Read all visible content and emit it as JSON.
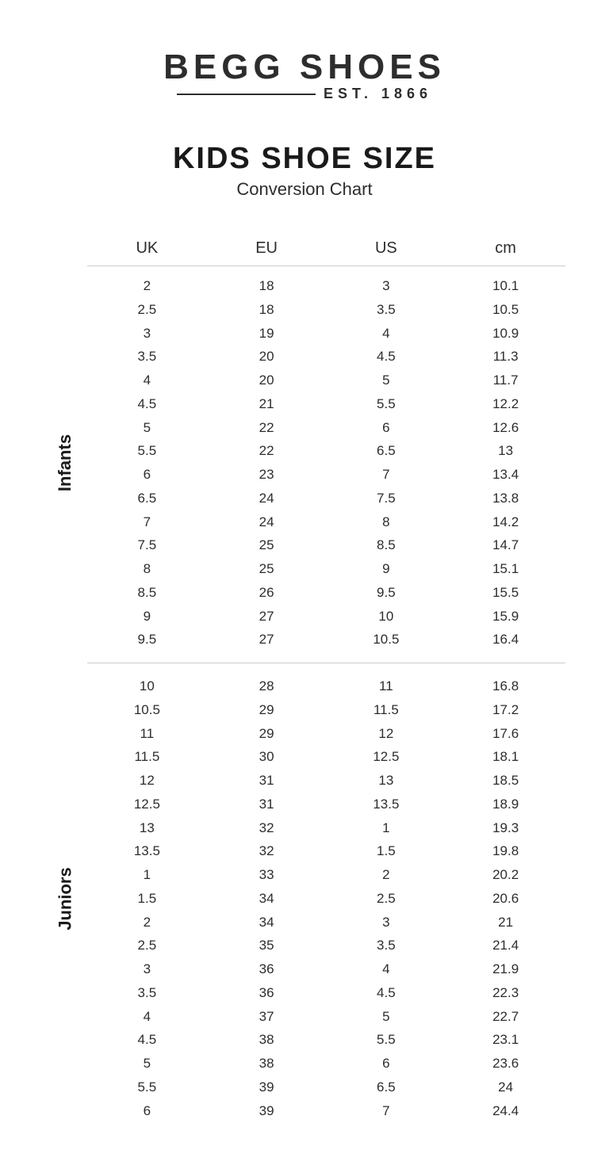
{
  "brand": "BEGG SHOES",
  "established": "EST. 1866",
  "title": "KIDS SHOE SIZE",
  "subtitle": "Conversion Chart",
  "columns": [
    "UK",
    "EU",
    "US",
    "cm"
  ],
  "sections": [
    {
      "label": "Infants",
      "rows": [
        [
          "2",
          "18",
          "3",
          "10.1"
        ],
        [
          "2.5",
          "18",
          "3.5",
          "10.5"
        ],
        [
          "3",
          "19",
          "4",
          "10.9"
        ],
        [
          "3.5",
          "20",
          "4.5",
          "11.3"
        ],
        [
          "4",
          "20",
          "5",
          "11.7"
        ],
        [
          "4.5",
          "21",
          "5.5",
          "12.2"
        ],
        [
          "5",
          "22",
          "6",
          "12.6"
        ],
        [
          "5.5",
          "22",
          "6.5",
          "13"
        ],
        [
          "6",
          "23",
          "7",
          "13.4"
        ],
        [
          "6.5",
          "24",
          "7.5",
          "13.8"
        ],
        [
          "7",
          "24",
          "8",
          "14.2"
        ],
        [
          "7.5",
          "25",
          "8.5",
          "14.7"
        ],
        [
          "8",
          "25",
          "9",
          "15.1"
        ],
        [
          "8.5",
          "26",
          "9.5",
          "15.5"
        ],
        [
          "9",
          "27",
          "10",
          "15.9"
        ],
        [
          "9.5",
          "27",
          "10.5",
          "16.4"
        ]
      ]
    },
    {
      "label": "Juniors",
      "rows": [
        [
          "10",
          "28",
          "11",
          "16.8"
        ],
        [
          "10.5",
          "29",
          "11.5",
          "17.2"
        ],
        [
          "11",
          "29",
          "12",
          "17.6"
        ],
        [
          "11.5",
          "30",
          "12.5",
          "18.1"
        ],
        [
          "12",
          "31",
          "13",
          "18.5"
        ],
        [
          "12.5",
          "31",
          "13.5",
          "18.9"
        ],
        [
          "13",
          "32",
          "1",
          "19.3"
        ],
        [
          "13.5",
          "32",
          "1.5",
          "19.8"
        ],
        [
          "1",
          "33",
          "2",
          "20.2"
        ],
        [
          "1.5",
          "34",
          "2.5",
          "20.6"
        ],
        [
          "2",
          "34",
          "3",
          "21"
        ],
        [
          "2.5",
          "35",
          "3.5",
          "21.4"
        ],
        [
          "3",
          "36",
          "4",
          "21.9"
        ],
        [
          "3.5",
          "36",
          "4.5",
          "22.3"
        ],
        [
          "4",
          "37",
          "5",
          "22.7"
        ],
        [
          "4.5",
          "38",
          "5.5",
          "23.1"
        ],
        [
          "5",
          "38",
          "6",
          "23.6"
        ],
        [
          "5.5",
          "39",
          "6.5",
          "24"
        ],
        [
          "6",
          "39",
          "7",
          "24.4"
        ]
      ]
    }
  ],
  "colors": {
    "text": "#2d2d2d",
    "heading": "#1a1a1a",
    "divider": "#cccccc",
    "background": "#ffffff"
  },
  "typography": {
    "brand_fontsize": 44,
    "title_fontsize": 38,
    "subtitle_fontsize": 22,
    "header_fontsize": 20,
    "cell_fontsize": 17,
    "sidelabel_fontsize": 22
  }
}
